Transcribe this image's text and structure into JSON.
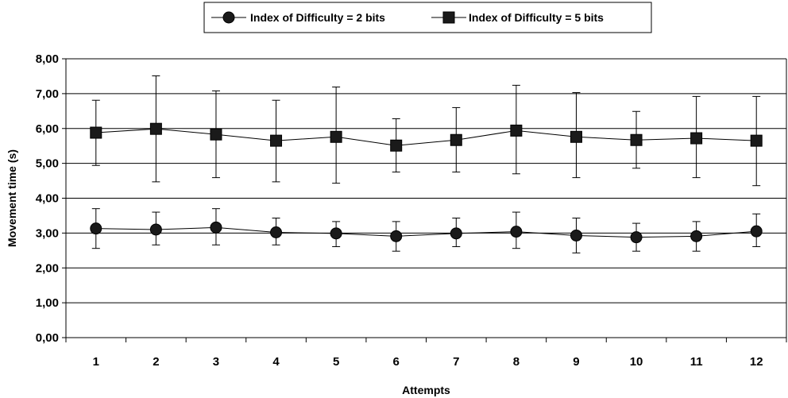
{
  "chart_data": {
    "type": "line",
    "title": "",
    "xlabel": "Attempts",
    "ylabel": "Movement time (s)",
    "categories": [
      "1",
      "2",
      "3",
      "4",
      "5",
      "6",
      "7",
      "8",
      "9",
      "10",
      "11",
      "12"
    ],
    "ylim": [
      0,
      8
    ],
    "yticks": [
      "0,00",
      "1,00",
      "2,00",
      "3,00",
      "4,00",
      "5,00",
      "6,00",
      "7,00",
      "8,00"
    ],
    "grid": true,
    "legend_position": "top-center",
    "series": [
      {
        "name": "Index of Difficulty = 2 bits",
        "marker": "circle",
        "color": "#1a1a1a",
        "values": [
          3.13,
          3.1,
          3.16,
          3.02,
          2.99,
          2.91,
          2.99,
          3.04,
          2.93,
          2.88,
          2.91,
          3.05
        ],
        "err_low": [
          2.56,
          2.66,
          2.66,
          2.66,
          2.61,
          2.48,
          2.61,
          2.56,
          2.43,
          2.48,
          2.48,
          2.61
        ],
        "err_high": [
          3.7,
          3.6,
          3.7,
          3.43,
          3.33,
          3.33,
          3.43,
          3.6,
          3.43,
          3.28,
          3.33,
          3.55
        ]
      },
      {
        "name": "Index of Difficulty = 5 bits",
        "marker": "square",
        "color": "#1a1a1a",
        "values": [
          5.88,
          5.99,
          5.83,
          5.65,
          5.76,
          5.51,
          5.67,
          5.94,
          5.76,
          5.67,
          5.72,
          5.65
        ],
        "err_low": [
          4.94,
          4.47,
          4.59,
          4.47,
          4.43,
          4.75,
          4.75,
          4.7,
          4.59,
          4.86,
          4.59,
          4.36
        ],
        "err_high": [
          6.81,
          7.51,
          7.08,
          6.81,
          7.19,
          6.28,
          6.6,
          7.24,
          7.03,
          6.49,
          6.92,
          6.92
        ]
      }
    ]
  }
}
